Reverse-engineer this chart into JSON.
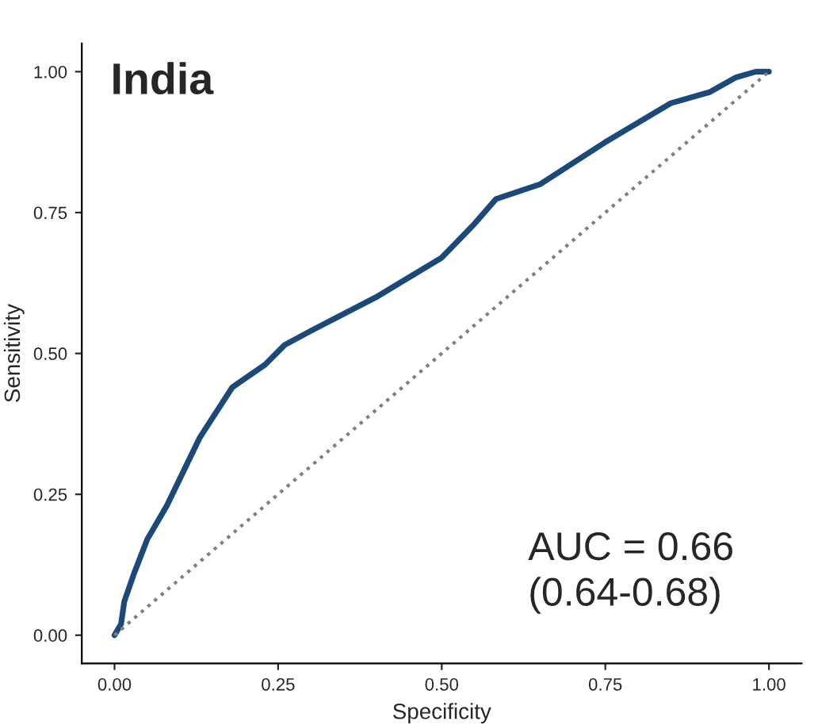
{
  "chart_data": {
    "type": "line",
    "title": "India",
    "xlabel": "Specificity",
    "ylabel": "Sensitivity",
    "annotations": [
      "AUC = 0.66\n(0.64-0.68)"
    ],
    "series": [
      {
        "color": "#1b4a7a",
        "line_style": "solid",
        "x": [
          0,
          0.01,
          0.015,
          0.03,
          0.05,
          0.08,
          0.13,
          0.18,
          0.23,
          0.26,
          0.3,
          0.4,
          0.5,
          0.55,
          0.583,
          0.65,
          0.75,
          0.85,
          0.91,
          0.95,
          0.98,
          1.0
        ],
        "values": [
          0,
          0.02,
          0.06,
          0.11,
          0.17,
          0.23,
          0.35,
          0.44,
          0.48,
          0.515,
          0.54,
          0.6,
          0.67,
          0.73,
          0.774,
          0.8,
          0.875,
          0.944,
          0.964,
          0.99,
          1.0,
          1.0
        ]
      },
      {
        "color": "#7f7f7f",
        "line_style": "dotted",
        "x": [
          0,
          1
        ],
        "values": [
          0,
          1
        ]
      }
    ],
    "xlim": [
      -0.05,
      1.05
    ],
    "ylim": [
      -0.05,
      1.05
    ],
    "xticks": [
      {
        "value": 0,
        "label": "0.00"
      },
      {
        "value": 0.25,
        "label": "0.25"
      },
      {
        "value": 0.5,
        "label": "0.50"
      },
      {
        "value": 0.75,
        "label": "0.75"
      },
      {
        "value": 1,
        "label": "1.00"
      }
    ],
    "yticks": [
      {
        "value": 0,
        "label": "0.00"
      },
      {
        "value": 0.25,
        "label": "0.25"
      },
      {
        "value": 0.5,
        "label": "0.50"
      },
      {
        "value": 0.75,
        "label": "0.75"
      },
      {
        "value": 1,
        "label": "1.00"
      }
    ],
    "grid": false,
    "marker": "none"
  }
}
